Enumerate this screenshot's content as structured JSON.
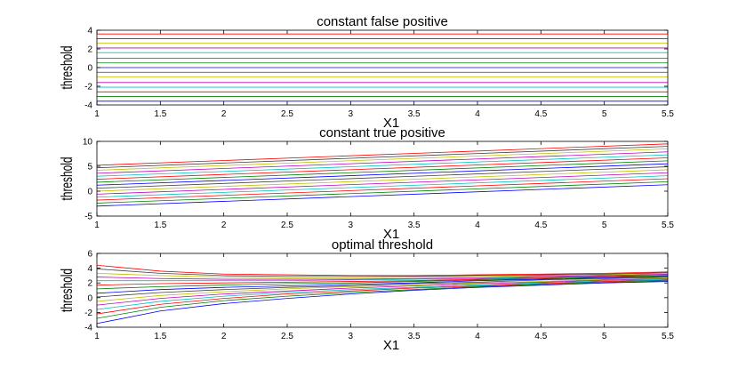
{
  "chart_data": [
    {
      "type": "line",
      "title": "constant false positive",
      "xlabel": "X1",
      "ylabel": "threshold",
      "xlim": [
        1,
        5.5
      ],
      "ylim": [
        -4,
        4
      ],
      "xticks": [
        1,
        1.5,
        2,
        2.5,
        3,
        3.5,
        4,
        4.5,
        5,
        5.5
      ],
      "xtick_labels": [
        "1",
        "1.5",
        "2",
        "2.5",
        "3",
        "3.5",
        "4",
        "4.5",
        "5",
        "5.5"
      ],
      "yticks": [
        -4,
        -2,
        0,
        2,
        4
      ],
      "ytick_labels": [
        "-4",
        "-2",
        "0",
        "2",
        "4"
      ],
      "grid": false,
      "x": [
        1,
        5.5
      ],
      "series": [
        {
          "color": "#0000ff",
          "values": [
            -3.6,
            -3.6
          ]
        },
        {
          "color": "#008000",
          "values": [
            -3.1,
            -3.1
          ]
        },
        {
          "color": "#ff0000",
          "values": [
            -2.6,
            -2.6
          ]
        },
        {
          "color": "#00bfbf",
          "values": [
            -2.1,
            -2.1
          ]
        },
        {
          "color": "#bf00bf",
          "values": [
            -1.6,
            -1.6
          ]
        },
        {
          "color": "#bfbf00",
          "values": [
            -1.0,
            -1.0
          ]
        },
        {
          "color": "#404040",
          "values": [
            -0.5,
            -0.5
          ]
        },
        {
          "color": "#0000ff",
          "values": [
            0.0,
            0.0
          ]
        },
        {
          "color": "#008000",
          "values": [
            0.5,
            0.5
          ]
        },
        {
          "color": "#ff0000",
          "values": [
            1.0,
            1.0
          ]
        },
        {
          "color": "#00bfbf",
          "values": [
            1.6,
            1.6
          ]
        },
        {
          "color": "#bf00bf",
          "values": [
            2.1,
            2.1
          ]
        },
        {
          "color": "#bfbf00",
          "values": [
            2.6,
            2.6
          ]
        },
        {
          "color": "#404040",
          "values": [
            3.1,
            3.1
          ]
        },
        {
          "color": "#ff0000",
          "values": [
            3.6,
            3.6
          ]
        }
      ]
    },
    {
      "type": "line",
      "title": "constant true positive",
      "xlabel": "X1",
      "ylabel": "threshold",
      "xlim": [
        1,
        5.5
      ],
      "ylim": [
        -5,
        10
      ],
      "xticks": [
        1,
        1.5,
        2,
        2.5,
        3,
        3.5,
        4,
        4.5,
        5,
        5.5
      ],
      "xtick_labels": [
        "1",
        "1.5",
        "2",
        "2.5",
        "3",
        "3.5",
        "4",
        "4.5",
        "5",
        "5.5"
      ],
      "yticks": [
        -5,
        0,
        5,
        10
      ],
      "ytick_labels": [
        "-5",
        "0",
        "5",
        "10"
      ],
      "grid": false,
      "x": [
        1,
        5.5
      ],
      "series": [
        {
          "color": "#0000ff",
          "values": [
            -3.0,
            1.3
          ]
        },
        {
          "color": "#008000",
          "values": [
            -2.4,
            1.9
          ]
        },
        {
          "color": "#ff0000",
          "values": [
            -1.8,
            2.5
          ]
        },
        {
          "color": "#00bfbf",
          "values": [
            -1.2,
            3.1
          ]
        },
        {
          "color": "#bf00bf",
          "values": [
            -0.6,
            3.7
          ]
        },
        {
          "color": "#bfbf00",
          "values": [
            0.0,
            4.3
          ]
        },
        {
          "color": "#404040",
          "values": [
            0.6,
            4.9
          ]
        },
        {
          "color": "#0000ff",
          "values": [
            1.2,
            5.5
          ]
        },
        {
          "color": "#008000",
          "values": [
            1.8,
            6.1
          ]
        },
        {
          "color": "#ff0000",
          "values": [
            2.4,
            6.7
          ]
        },
        {
          "color": "#00bfbf",
          "values": [
            3.0,
            7.3
          ]
        },
        {
          "color": "#bf00bf",
          "values": [
            3.6,
            7.9
          ]
        },
        {
          "color": "#bfbf00",
          "values": [
            4.2,
            8.5
          ]
        },
        {
          "color": "#404040",
          "values": [
            4.7,
            9.0
          ]
        },
        {
          "color": "#ff0000",
          "values": [
            5.2,
            9.5
          ]
        }
      ]
    },
    {
      "type": "line",
      "title": "optimal threshold",
      "xlabel": "X1",
      "ylabel": "threshold",
      "xlim": [
        1,
        5.5
      ],
      "ylim": [
        -4,
        6
      ],
      "xticks": [
        1,
        1.5,
        2,
        2.5,
        3,
        3.5,
        4,
        4.5,
        5,
        5.5
      ],
      "xtick_labels": [
        "1",
        "1.5",
        "2",
        "2.5",
        "3",
        "3.5",
        "4",
        "4.5",
        "5",
        "5.5"
      ],
      "yticks": [
        -4,
        -2,
        0,
        2,
        4,
        6
      ],
      "ytick_labels": [
        "-4",
        "-2",
        "0",
        "2",
        "4",
        "6"
      ],
      "grid": false,
      "x": [
        1,
        1.5,
        2,
        2.5,
        3,
        3.5,
        4,
        4.5,
        5,
        5.5
      ],
      "series": [
        {
          "color": "#0000ff",
          "values": [
            -3.5,
            -1.8,
            -0.8,
            -0.1,
            0.5,
            1.0,
            1.4,
            1.7,
            2.0,
            2.2
          ]
        },
        {
          "color": "#008000",
          "values": [
            -2.8,
            -1.3,
            -0.4,
            0.2,
            0.7,
            1.1,
            1.5,
            1.8,
            2.1,
            2.3
          ]
        },
        {
          "color": "#ff0000",
          "values": [
            -2.2,
            -0.9,
            -0.1,
            0.5,
            0.9,
            1.3,
            1.6,
            1.9,
            2.2,
            2.4
          ]
        },
        {
          "color": "#00bfbf",
          "values": [
            -1.6,
            -0.5,
            0.2,
            0.7,
            1.1,
            1.4,
            1.7,
            2.0,
            2.3,
            2.5
          ]
        },
        {
          "color": "#bf00bf",
          "values": [
            -1.0,
            -0.1,
            0.5,
            0.9,
            1.3,
            1.6,
            1.9,
            2.1,
            2.4,
            2.6
          ]
        },
        {
          "color": "#bfbf00",
          "values": [
            -0.5,
            0.3,
            0.8,
            1.2,
            1.5,
            1.7,
            2.0,
            2.2,
            2.5,
            2.7
          ]
        },
        {
          "color": "#404040",
          "values": [
            0.1,
            0.7,
            1.1,
            1.4,
            1.6,
            1.9,
            2.1,
            2.4,
            2.6,
            2.8
          ]
        },
        {
          "color": "#0000ff",
          "values": [
            0.6,
            1.1,
            1.4,
            1.6,
            1.8,
            2.0,
            2.3,
            2.5,
            2.7,
            2.9
          ]
        },
        {
          "color": "#008000",
          "values": [
            1.2,
            1.5,
            1.7,
            1.9,
            2.0,
            2.2,
            2.4,
            2.6,
            2.8,
            3.0
          ]
        },
        {
          "color": "#ff0000",
          "values": [
            1.7,
            1.9,
            2.0,
            2.1,
            2.2,
            2.3,
            2.5,
            2.7,
            2.9,
            3.1
          ]
        },
        {
          "color": "#00bfbf",
          "values": [
            2.3,
            2.3,
            2.3,
            2.3,
            2.4,
            2.5,
            2.6,
            2.8,
            3.0,
            3.1
          ]
        },
        {
          "color": "#bf00bf",
          "values": [
            2.8,
            2.6,
            2.5,
            2.5,
            2.5,
            2.6,
            2.7,
            2.9,
            3.0,
            3.2
          ]
        },
        {
          "color": "#bfbf00",
          "values": [
            3.3,
            3.0,
            2.8,
            2.7,
            2.7,
            2.8,
            2.9,
            3.0,
            3.1,
            3.3
          ]
        },
        {
          "color": "#404040",
          "values": [
            3.9,
            3.3,
            3.0,
            2.9,
            2.9,
            2.9,
            3.0,
            3.1,
            3.2,
            3.4
          ]
        },
        {
          "color": "#ff0000",
          "values": [
            4.4,
            3.6,
            3.2,
            3.1,
            3.0,
            3.0,
            3.1,
            3.2,
            3.3,
            3.5
          ]
        }
      ]
    }
  ]
}
